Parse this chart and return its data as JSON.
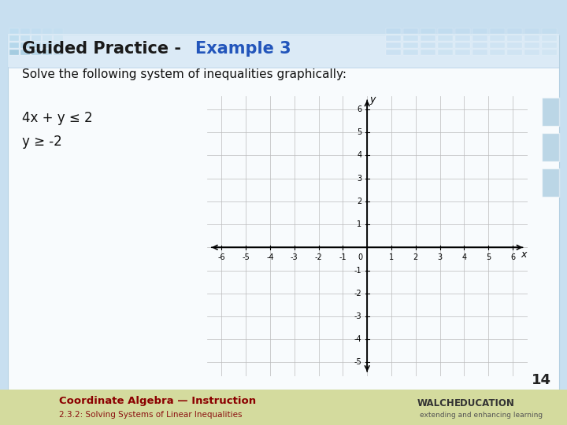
{
  "title_black": "Guided Practice",
  "title_sep": " - ",
  "title_blue": "Example 3",
  "subtitle": "Solve the following system of inequalities graphically:",
  "ineq1": "4x + y ≤ 2",
  "ineq2": "y ≥ -2",
  "page_number": "14",
  "xmin": -6,
  "xmax": 6,
  "ymin": -5,
  "ymax": 6,
  "xtick_labels": [
    "-6",
    "-5",
    "-4",
    "-3",
    "-2",
    "-1",
    "1",
    "2",
    "3",
    "4",
    "5",
    "6"
  ],
  "xtick_vals": [
    -6,
    -5,
    -4,
    -3,
    -2,
    -1,
    1,
    2,
    3,
    4,
    5,
    6
  ],
  "ytick_labels": [
    "6",
    "5",
    "4",
    "3",
    "2",
    "1",
    "-1",
    "-2",
    "-3",
    "-4",
    "-5"
  ],
  "ytick_vals": [
    6,
    5,
    4,
    3,
    2,
    1,
    -1,
    -2,
    -3,
    -4,
    -5
  ],
  "grid_color": "#bbbbbb",
  "bg_main": "#c8dff0",
  "bg_content": "#e0edf6",
  "graph_bg": "#f5f5f5",
  "title_fontsize": 15,
  "subtitle_fontsize": 11,
  "ineq_fontsize": 12,
  "footer_bg": "#d4db9e",
  "footer_text1": "Coordinate Algebra — Instruction",
  "footer_text2": "2.3.2: Solving Systems of Linear Inequalities",
  "footer_right1": "WALCH",
  "footer_right2": "EDUCATION",
  "footer_right3": "extending and enhancing learning",
  "deco_sq_color": "#a0c8e0",
  "deco_sq_color2": "#b8d8ee",
  "right_rect_color": "#8ab8d4"
}
